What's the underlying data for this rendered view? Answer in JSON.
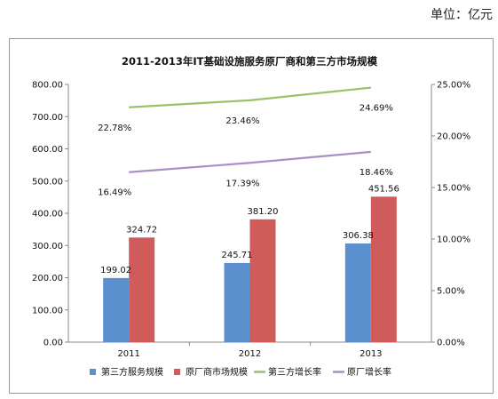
{
  "unit_label": "单位：亿元",
  "chart_data": {
    "type": "bar",
    "title": "2011-2013年IT基础设施服务原厂商和第三方市场规模",
    "categories": [
      "2011",
      "2012",
      "2013"
    ],
    "y_left": {
      "ylim": [
        0,
        800
      ],
      "ticks": [
        0,
        100,
        200,
        300,
        400,
        500,
        600,
        700,
        800
      ],
      "tick_labels": [
        "0.00",
        "100.00",
        "200.00",
        "300.00",
        "400.00",
        "500.00",
        "600.00",
        "700.00",
        "800.00"
      ]
    },
    "y_right": {
      "ylim": [
        0,
        25
      ],
      "ticks": [
        0,
        5,
        10,
        15,
        20,
        25
      ],
      "tick_labels": [
        "0.00%",
        "5.00%",
        "10.00%",
        "15.00%",
        "20.00%",
        "25.00%"
      ]
    },
    "grid": false,
    "legend_position": "bottom",
    "series": [
      {
        "name": "第三方服务规模",
        "kind": "bar",
        "axis": "left",
        "color": "#5b8fcd",
        "values": [
          199.02,
          245.71,
          306.38
        ],
        "labels": [
          "199.02",
          "245.71",
          "306.38"
        ]
      },
      {
        "name": "原厂商市场规模",
        "kind": "bar",
        "axis": "left",
        "color": "#cf5c5a",
        "values": [
          324.72,
          381.2,
          451.56
        ],
        "labels": [
          "324.72",
          "381.20",
          "451.56"
        ]
      },
      {
        "name": "第三方增长率",
        "kind": "line",
        "axis": "right",
        "color": "#9bc16a",
        "values": [
          22.78,
          23.46,
          24.69
        ],
        "labels": [
          "22.78%",
          "23.46%",
          "24.69%"
        ]
      },
      {
        "name": "原厂增长率",
        "kind": "line",
        "axis": "right",
        "color": "#a98fc8",
        "values": [
          16.49,
          17.39,
          18.46
        ],
        "labels": [
          "16.49%",
          "17.39%",
          "18.46%"
        ]
      }
    ]
  }
}
